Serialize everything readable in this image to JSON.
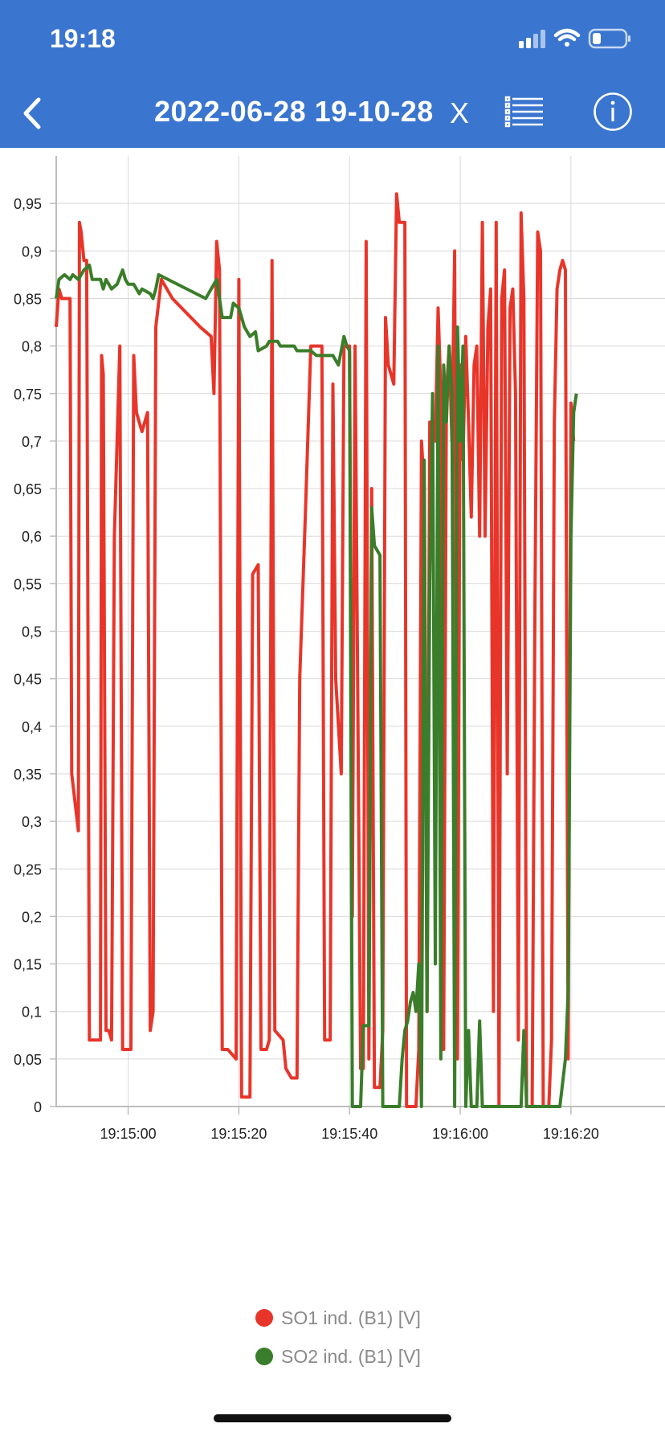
{
  "status_bar": {
    "time": "19:18",
    "icons": [
      "signal-icon",
      "wifi-icon",
      "battery-icon"
    ]
  },
  "nav": {
    "title": "2022-06-28 19-10-28",
    "close_label": "X",
    "icons": [
      "back-chevron-icon",
      "list-icon",
      "info-icon"
    ]
  },
  "colors": {
    "header": "#3a75cf",
    "so1": "#e8352a",
    "so2": "#3a7d2a"
  },
  "legend": [
    {
      "label": "SO1 ind. (B1) [V]"
    },
    {
      "label": "SO2 ind. (B1) [V]"
    }
  ],
  "chart_data": {
    "type": "line",
    "x_axis": {
      "kind": "time",
      "min": "19:14:47",
      "max": "19:16:37",
      "ticks": [
        "19:15:00",
        "19:15:20",
        "19:15:40",
        "19:16:00",
        "19:16:20"
      ]
    },
    "y_axis": {
      "min": 0,
      "max": 1.0,
      "ticks": [
        "0",
        "0,05",
        "0,1",
        "0,15",
        "0,2",
        "0,25",
        "0,3",
        "0,35",
        "0,4",
        "0,45",
        "0,5",
        "0,55",
        "0,6",
        "0,65",
        "0,7",
        "0,75",
        "0,8",
        "0,85",
        "0,9",
        "0,95"
      ]
    },
    "grid": true,
    "legend_position": "bottom",
    "series": [
      {
        "name": "SO1 ind. (B1) [V]",
        "points": [
          [
            "19:14:47",
            0.82
          ],
          [
            "19:14:47.5",
            0.86
          ],
          [
            "19:14:48",
            0.85
          ],
          [
            "19:14:49",
            0.85
          ],
          [
            "19:14:49.5",
            0.85
          ],
          [
            "19:14:49.8",
            0.35
          ],
          [
            "19:14:51",
            0.29
          ],
          [
            "19:14:51.2",
            0.93
          ],
          [
            "19:14:51.5",
            0.92
          ],
          [
            "19:14:52",
            0.89
          ],
          [
            "19:14:52.5",
            0.89
          ],
          [
            "19:14:53",
            0.07
          ],
          [
            "19:14:55",
            0.07
          ],
          [
            "19:14:55.2",
            0.79
          ],
          [
            "19:14:55.5",
            0.77
          ],
          [
            "19:14:56",
            0.08
          ],
          [
            "19:14:56.5",
            0.08
          ],
          [
            "19:14:57",
            0.07
          ],
          [
            "19:14:57.5",
            0.6
          ],
          [
            "19:14:58.5",
            0.8
          ],
          [
            "19:14:59",
            0.06
          ],
          [
            "19:15:00.5",
            0.06
          ],
          [
            "19:15:01",
            0.79
          ],
          [
            "19:15:01.5",
            0.73
          ],
          [
            "19:15:02.5",
            0.71
          ],
          [
            "19:15:03.5",
            0.73
          ],
          [
            "19:15:04",
            0.08
          ],
          [
            "19:15:04.5",
            0.1
          ],
          [
            "19:15:05",
            0.82
          ],
          [
            "19:15:06",
            0.87
          ],
          [
            "19:15:08",
            0.85
          ],
          [
            "19:15:13",
            0.82
          ],
          [
            "19:15:15",
            0.81
          ],
          [
            "19:15:15.5",
            0.75
          ],
          [
            "19:15:16",
            0.91
          ],
          [
            "19:15:16.5",
            0.88
          ],
          [
            "19:15:17",
            0.06
          ],
          [
            "19:15:18",
            0.06
          ],
          [
            "19:15:19.5",
            0.05
          ],
          [
            "19:15:20",
            0.87
          ],
          [
            "19:15:20.5",
            0.01
          ],
          [
            "19:15:22",
            0.01
          ],
          [
            "19:15:22.5",
            0.56
          ],
          [
            "19:15:23.5",
            0.57
          ],
          [
            "19:15:24",
            0.06
          ],
          [
            "19:15:25",
            0.06
          ],
          [
            "19:15:25.5",
            0.07
          ],
          [
            "19:15:26",
            0.89
          ],
          [
            "19:15:26.5",
            0.08
          ],
          [
            "19:15:28",
            0.07
          ],
          [
            "19:15:28.5",
            0.04
          ],
          [
            "19:15:29.5",
            0.03
          ],
          [
            "19:15:30.5",
            0.03
          ],
          [
            "19:15:31",
            0.45
          ],
          [
            "19:15:32",
            0.62
          ],
          [
            "19:15:33",
            0.8
          ],
          [
            "19:15:35",
            0.8
          ],
          [
            "19:15:35.5",
            0.07
          ],
          [
            "19:15:36.5",
            0.07
          ],
          [
            "19:15:37",
            0.76
          ],
          [
            "19:15:37.5",
            0.45
          ],
          [
            "19:15:38.5",
            0.35
          ],
          [
            "19:15:39",
            0.8
          ],
          [
            "19:15:40",
            0.8
          ],
          [
            "19:15:40.5",
            0.2
          ],
          [
            "19:15:41",
            0.8
          ],
          [
            "19:15:42",
            0.04
          ],
          [
            "19:15:42.5",
            0.04
          ],
          [
            "19:15:43",
            0.91
          ],
          [
            "19:15:43.5",
            0.05
          ],
          [
            "19:15:44",
            0.65
          ],
          [
            "19:15:44.5",
            0.02
          ],
          [
            "19:15:45",
            0.02
          ],
          [
            "19:15:45.5",
            0.02
          ],
          [
            "19:15:46",
            0.08
          ],
          [
            "19:15:46.5",
            0.83
          ],
          [
            "19:15:47",
            0.78
          ],
          [
            "19:15:48",
            0.76
          ],
          [
            "19:15:48.5",
            0.96
          ],
          [
            "19:15:49",
            0.93
          ],
          [
            "19:15:49.5",
            0.93
          ],
          [
            "19:15:50",
            0.93
          ],
          [
            "19:15:50.3",
            0.0
          ],
          [
            "19:15:51",
            0.0
          ],
          [
            "19:15:52",
            0.0
          ],
          [
            "19:15:52.5",
            0.06
          ],
          [
            "19:15:53",
            0.7
          ],
          [
            "19:15:53.5",
            0.65
          ],
          [
            "19:15:54",
            0.1
          ],
          [
            "19:15:54.5",
            0.72
          ],
          [
            "19:15:55",
            0.7
          ],
          [
            "19:15:55.5",
            0.7
          ],
          [
            "19:15:56",
            0.84
          ],
          [
            "19:15:56.5",
            0.75
          ],
          [
            "19:15:57",
            0.06
          ],
          [
            "19:15:57.5",
            0.75
          ],
          [
            "19:15:58",
            0.8
          ],
          [
            "19:15:58.5",
            0.7
          ],
          [
            "19:15:59",
            0.9
          ],
          [
            "19:15:59.5",
            0.05
          ],
          [
            "19:16:00",
            0.78
          ],
          [
            "19:16:00.5",
            0.68
          ],
          [
            "19:16:01",
            0.81
          ],
          [
            "19:16:01.5",
            0.72
          ],
          [
            "19:16:02",
            0.62
          ],
          [
            "19:16:02.5",
            0.78
          ],
          [
            "19:16:03",
            0.8
          ],
          [
            "19:16:03.5",
            0.6
          ],
          [
            "19:16:04",
            0.93
          ],
          [
            "19:16:04.5",
            0.6
          ],
          [
            "19:16:05",
            0.82
          ],
          [
            "19:16:05.5",
            0.86
          ],
          [
            "19:16:06",
            0.1
          ],
          [
            "19:16:06.5",
            0.93
          ],
          [
            "19:16:07",
            0.0
          ],
          [
            "19:16:07.5",
            0.85
          ],
          [
            "19:16:08",
            0.88
          ],
          [
            "19:16:08.5",
            0.35
          ],
          [
            "19:16:09",
            0.84
          ],
          [
            "19:16:09.5",
            0.86
          ],
          [
            "19:16:10",
            0.75
          ],
          [
            "19:16:10.5",
            0.07
          ],
          [
            "19:16:11",
            0.94
          ],
          [
            "19:16:11.5",
            0.85
          ],
          [
            "19:16:12",
            0.0
          ],
          [
            "19:16:13",
            0.0
          ],
          [
            "19:16:13.5",
            0.53
          ],
          [
            "19:16:14",
            0.92
          ],
          [
            "19:16:14.5",
            0.9
          ],
          [
            "19:16:15",
            0.0
          ],
          [
            "19:16:16",
            0.0
          ],
          [
            "19:16:16.5",
            0.07
          ],
          [
            "19:16:17",
            0.72
          ],
          [
            "19:16:17.5",
            0.86
          ],
          [
            "19:16:18",
            0.88
          ],
          [
            "19:16:18.5",
            0.89
          ],
          [
            "19:16:19",
            0.88
          ],
          [
            "19:16:19.5",
            0.05
          ],
          [
            "19:16:20",
            0.74
          ],
          [
            "19:16:20.5",
            0.7
          ]
        ]
      },
      {
        "name": "SO2 ind. (B1) [V]",
        "points": [
          [
            "19:14:47",
            0.85
          ],
          [
            "19:14:47.5",
            0.87
          ],
          [
            "19:14:48.5",
            0.875
          ],
          [
            "19:14:49.5",
            0.87
          ],
          [
            "19:14:50",
            0.875
          ],
          [
            "19:14:51",
            0.87
          ],
          [
            "19:14:52",
            0.88
          ],
          [
            "19:14:53",
            0.885
          ],
          [
            "19:14:53.5",
            0.87
          ],
          [
            "19:14:55",
            0.87
          ],
          [
            "19:14:55.5",
            0.86
          ],
          [
            "19:14:56",
            0.87
          ],
          [
            "19:14:57",
            0.86
          ],
          [
            "19:14:58",
            0.865
          ],
          [
            "19:14:59",
            0.88
          ],
          [
            "19:14:59.5",
            0.87
          ],
          [
            "19:15:00",
            0.865
          ],
          [
            "19:15:01",
            0.865
          ],
          [
            "19:15:02",
            0.855
          ],
          [
            "19:15:02.5",
            0.86
          ],
          [
            "19:15:04",
            0.855
          ],
          [
            "19:15:04.5",
            0.85
          ],
          [
            "19:15:05",
            0.86
          ],
          [
            "19:15:05.5",
            0.875
          ],
          [
            "19:15:14",
            0.85
          ],
          [
            "19:15:16",
            0.87
          ],
          [
            "19:15:17",
            0.83
          ],
          [
            "19:15:18.5",
            0.83
          ],
          [
            "19:15:19",
            0.845
          ],
          [
            "19:15:20",
            0.84
          ],
          [
            "19:15:21",
            0.82
          ],
          [
            "19:15:22",
            0.81
          ],
          [
            "19:15:23",
            0.815
          ],
          [
            "19:15:23.5",
            0.795
          ],
          [
            "19:15:25",
            0.8
          ],
          [
            "19:15:25.5",
            0.805
          ],
          [
            "19:15:27",
            0.805
          ],
          [
            "19:15:27.5",
            0.8
          ],
          [
            "19:15:30",
            0.8
          ],
          [
            "19:15:30.5",
            0.795
          ],
          [
            "19:15:33",
            0.795
          ],
          [
            "19:15:34",
            0.79
          ],
          [
            "19:15:37",
            0.79
          ],
          [
            "19:15:38",
            0.78
          ],
          [
            "19:15:39",
            0.81
          ],
          [
            "19:15:39.5",
            0.8
          ],
          [
            "19:15:40",
            0.795
          ],
          [
            "19:15:40.5",
            0.0
          ],
          [
            "19:15:42",
            0.0
          ],
          [
            "19:15:42.5",
            0.085
          ],
          [
            "19:15:43.5",
            0.085
          ],
          [
            "19:15:44",
            0.63
          ],
          [
            "19:15:44.5",
            0.59
          ],
          [
            "19:15:45.5",
            0.58
          ],
          [
            "19:15:46",
            0.0
          ],
          [
            "19:15:49",
            0.0
          ],
          [
            "19:15:49.5",
            0.05
          ],
          [
            "19:15:50",
            0.08
          ],
          [
            "19:15:50.5",
            0.09
          ],
          [
            "19:15:51",
            0.11
          ],
          [
            "19:15:51.5",
            0.12
          ],
          [
            "19:15:52",
            0.1
          ],
          [
            "19:15:52.5",
            0.15
          ],
          [
            "19:15:53",
            0.0
          ],
          [
            "19:15:53.5",
            0.68
          ],
          [
            "19:15:54",
            0.1
          ],
          [
            "19:15:54.5",
            0.55
          ],
          [
            "19:15:55",
            0.75
          ],
          [
            "19:15:55.5",
            0.15
          ],
          [
            "19:15:56",
            0.8
          ],
          [
            "19:15:56.5",
            0.05
          ],
          [
            "19:15:57",
            0.78
          ],
          [
            "19:15:57.5",
            0.72
          ],
          [
            "19:15:58",
            0.8
          ],
          [
            "19:15:58.5",
            0.75
          ],
          [
            "19:15:59",
            0.0
          ],
          [
            "19:15:59.5",
            0.82
          ],
          [
            "19:16:00",
            0.7
          ],
          [
            "19:16:00.5",
            0.8
          ],
          [
            "19:16:01",
            0.0
          ],
          [
            "19:16:01.5",
            0.08
          ],
          [
            "19:16:02",
            0.0
          ],
          [
            "19:16:03",
            0.0
          ],
          [
            "19:16:03.5",
            0.09
          ],
          [
            "19:16:04",
            0.0
          ],
          [
            "19:16:05",
            0.0
          ],
          [
            "19:16:06",
            0.0
          ],
          [
            "19:16:07",
            0.0
          ],
          [
            "19:16:08",
            0.0
          ],
          [
            "19:16:09",
            0.0
          ],
          [
            "19:16:10",
            0.0
          ],
          [
            "19:16:11",
            0.0
          ],
          [
            "19:16:11.5",
            0.08
          ],
          [
            "19:16:12",
            0.0
          ],
          [
            "19:16:13",
            0.0
          ],
          [
            "19:16:14",
            0.0
          ],
          [
            "19:16:15",
            0.0
          ],
          [
            "19:16:16",
            0.0
          ],
          [
            "19:16:17",
            0.0
          ],
          [
            "19:16:18",
            0.0
          ],
          [
            "19:16:19",
            0.05
          ],
          [
            "19:16:19.5",
            0.12
          ],
          [
            "19:16:20",
            0.6
          ],
          [
            "19:16:20.5",
            0.73
          ],
          [
            "19:16:21",
            0.75
          ]
        ]
      }
    ]
  }
}
